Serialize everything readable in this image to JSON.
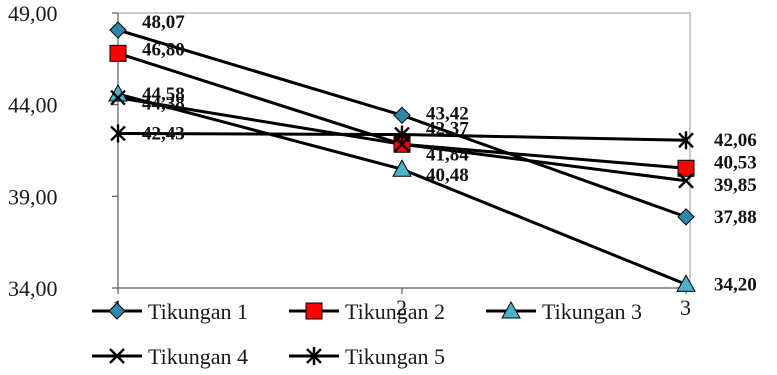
{
  "chart_data": {
    "type": "line",
    "categories": [
      "1",
      "2",
      "3"
    ],
    "ylim": [
      34,
      49
    ],
    "yticks": [
      "34,00",
      "39,00",
      "44,00",
      "49,00"
    ],
    "grid": false,
    "legend_position": "bottom",
    "series": [
      {
        "name": "Tikungan 1",
        "values": [
          48.07,
          43.42,
          37.88
        ],
        "labels": [
          "48,07",
          "43,42",
          "37,88"
        ],
        "marker": "diamond",
        "color": "#2e86ab"
      },
      {
        "name": "Tikungan 2",
        "values": [
          46.8,
          41.84,
          40.53
        ],
        "labels": [
          "46,80",
          "",
          "40,53"
        ],
        "marker": "square",
        "color": "#ff0000"
      },
      {
        "name": "Tikungan 3",
        "values": [
          44.58,
          40.48,
          34.2
        ],
        "labels": [
          "44,58",
          "40,48",
          "34,20"
        ],
        "marker": "triangle",
        "color": "#4ab3c9"
      },
      {
        "name": "Tikungan 4",
        "values": [
          44.38,
          41.84,
          39.85
        ],
        "labels": [
          "44,38",
          "41,84",
          "39,85"
        ],
        "marker": "x",
        "color": "#000000"
      },
      {
        "name": "Tikungan 5",
        "values": [
          42.43,
          42.37,
          42.06
        ],
        "labels": [
          "42,43",
          "42,37",
          "42,06"
        ],
        "marker": "star",
        "color": "#000000"
      }
    ]
  }
}
